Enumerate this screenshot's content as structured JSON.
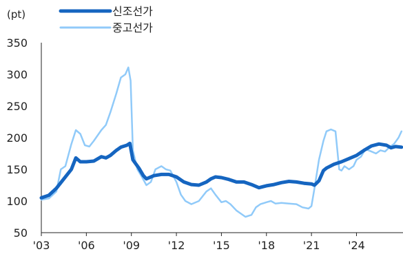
{
  "chart_data": {
    "type": "line",
    "ylabel": "(pt)",
    "ylim": [
      50,
      350
    ],
    "yticks": [
      50,
      100,
      150,
      200,
      250,
      300,
      350
    ],
    "xlim": [
      2003,
      2027.1
    ],
    "xticks": [
      {
        "value": 2003,
        "label": "'03"
      },
      {
        "value": 2006,
        "label": "'06"
      },
      {
        "value": 2009,
        "label": "'09"
      },
      {
        "value": 2012,
        "label": "'12"
      },
      {
        "value": 2015,
        "label": "'15"
      },
      {
        "value": 2018,
        "label": "'18"
      },
      {
        "value": 2021,
        "label": "'21"
      },
      {
        "value": 2024,
        "label": "'24"
      }
    ],
    "grid": false,
    "legend_position": "top-left",
    "series": [
      {
        "name": "신조선가",
        "color": "#1565C0",
        "style": "thick",
        "x": [
          2003.0,
          2003.5,
          2004.0,
          2004.5,
          2005.0,
          2005.3,
          2005.6,
          2006.0,
          2006.5,
          2007.0,
          2007.3,
          2007.6,
          2008.0,
          2008.3,
          2008.7,
          2008.9,
          2009.1,
          2009.5,
          2009.8,
          2010.0,
          2010.5,
          2011.0,
          2011.5,
          2012.0,
          2012.5,
          2013.0,
          2013.5,
          2014.0,
          2014.3,
          2014.6,
          2015.0,
          2015.5,
          2016.0,
          2016.5,
          2017.0,
          2017.5,
          2018.0,
          2018.5,
          2019.0,
          2019.5,
          2020.0,
          2020.5,
          2021.0,
          2021.2,
          2021.5,
          2021.8,
          2022.0,
          2022.5,
          2023.0,
          2023.5,
          2024.0,
          2024.5,
          2025.0,
          2025.5,
          2026.0,
          2026.3,
          2026.6,
          2027.0
        ],
        "y": [
          105,
          109,
          120,
          135,
          150,
          168,
          162,
          162,
          163,
          170,
          168,
          172,
          180,
          185,
          188,
          191,
          165,
          152,
          140,
          135,
          140,
          142,
          142,
          138,
          130,
          126,
          125,
          130,
          135,
          138,
          137,
          134,
          130,
          130,
          126,
          121,
          124,
          126,
          129,
          131,
          130,
          128,
          127,
          125,
          132,
          148,
          152,
          158,
          162,
          167,
          172,
          180,
          187,
          190,
          188,
          184,
          186,
          185
        ]
      },
      {
        "name": "중고선가",
        "color": "#90CAF9",
        "style": "thin",
        "x": [
          2003.0,
          2003.5,
          2004.0,
          2004.3,
          2004.6,
          2005.0,
          2005.3,
          2005.6,
          2005.9,
          2006.2,
          2006.5,
          2007.0,
          2007.3,
          2007.6,
          2008.0,
          2008.3,
          2008.6,
          2008.8,
          2008.95,
          2009.1,
          2009.4,
          2009.7,
          2010.0,
          2010.3,
          2010.6,
          2011.0,
          2011.3,
          2011.6,
          2012.0,
          2012.3,
          2012.6,
          2013.0,
          2013.5,
          2014.0,
          2014.3,
          2014.6,
          2015.0,
          2015.3,
          2015.6,
          2016.0,
          2016.3,
          2016.6,
          2017.0,
          2017.3,
          2017.6,
          2018.0,
          2018.3,
          2018.6,
          2019.0,
          2019.5,
          2020.0,
          2020.4,
          2020.8,
          2021.0,
          2021.2,
          2021.5,
          2021.8,
          2022.0,
          2022.3,
          2022.6,
          2022.85,
          2023.0,
          2023.2,
          2023.5,
          2023.8,
          2024.0,
          2024.3,
          2024.6,
          2025.0,
          2025.3,
          2025.6,
          2025.9,
          2026.2,
          2026.5,
          2026.8,
          2027.0
        ],
        "y": [
          102,
          104,
          115,
          150,
          155,
          190,
          212,
          206,
          188,
          186,
          195,
          212,
          220,
          240,
          270,
          295,
          300,
          311,
          290,
          180,
          150,
          138,
          125,
          130,
          150,
          155,
          150,
          148,
          130,
          110,
          100,
          95,
          100,
          115,
          120,
          110,
          98,
          100,
          95,
          85,
          80,
          75,
          78,
          90,
          95,
          98,
          100,
          96,
          97,
          96,
          95,
          90,
          88,
          92,
          120,
          165,
          195,
          210,
          213,
          210,
          150,
          148,
          155,
          150,
          155,
          165,
          170,
          182,
          178,
          175,
          180,
          178,
          185,
          190,
          200,
          210
        ]
      }
    ]
  }
}
